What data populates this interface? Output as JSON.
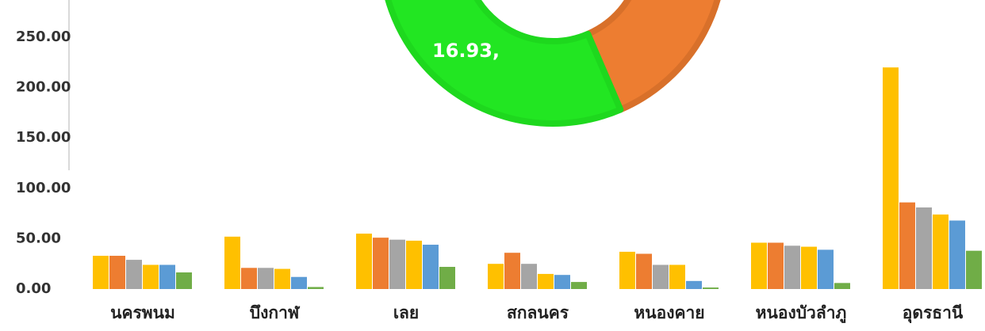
{
  "chart_data": {
    "type": "bar",
    "annotation": "16.93,",
    "categories": [
      "นครพนม",
      "บึงกาฬ",
      "เลย",
      "สกลนคร",
      "หนองคาย",
      "หนองบัวลำภู",
      "อุดรธานี"
    ],
    "series": [
      {
        "color": "#ffc000",
        "values": [
          33,
          52,
          55,
          25,
          37,
          46,
          220
        ]
      },
      {
        "color": "#ed7d31",
        "values": [
          33,
          21,
          51,
          36,
          35,
          46,
          86
        ]
      },
      {
        "color": "#a5a5a5",
        "values": [
          29,
          21,
          49,
          25,
          24,
          43,
          81
        ]
      },
      {
        "color": "#ffc000",
        "values": [
          24,
          20,
          48,
          15,
          24,
          42,
          74
        ]
      },
      {
        "color": "#5b9bd5",
        "values": [
          24,
          12,
          44,
          14,
          8,
          39,
          68
        ]
      },
      {
        "color": "#70ad47",
        "values": [
          16.5,
          2,
          22,
          7,
          1.5,
          6,
          38
        ]
      }
    ],
    "ylim": [
      0,
      250
    ],
    "yticks": [
      {
        "value": 0,
        "label": "0.00"
      },
      {
        "value": 50,
        "label": "50.00"
      },
      {
        "value": 100,
        "label": "100.00"
      },
      {
        "value": 150,
        "label": "150.00"
      },
      {
        "value": 200,
        "label": "200.00"
      },
      {
        "value": 250,
        "label": "250.00"
      }
    ],
    "grid": false
  }
}
